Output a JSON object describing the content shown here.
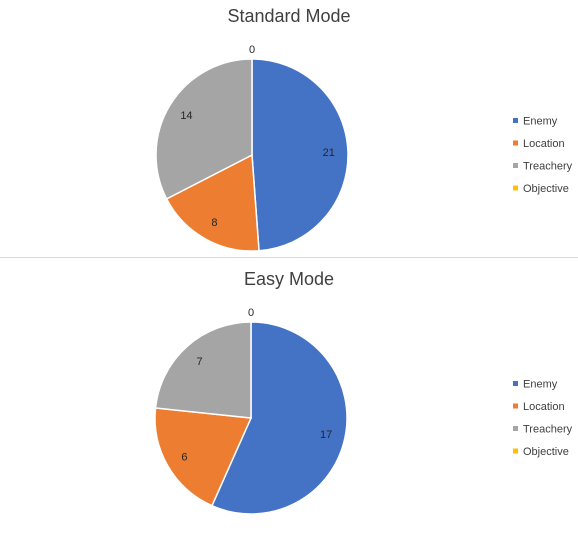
{
  "chart_data": [
    {
      "type": "pie",
      "title": "Standard Mode",
      "categories": [
        "Enemy",
        "Location",
        "Treachery",
        "Objective"
      ],
      "values": [
        21,
        8,
        14,
        0
      ],
      "colors": [
        "#4472C4",
        "#ED7D31",
        "#A5A5A5",
        "#FFC000"
      ],
      "legend_position": "right",
      "data_labels": true
    },
    {
      "type": "pie",
      "title": "Easy Mode",
      "categories": [
        "Enemy",
        "Location",
        "Treachery",
        "Objective"
      ],
      "values": [
        17,
        6,
        7,
        0
      ],
      "colors": [
        "#4472C4",
        "#ED7D31",
        "#A5A5A5",
        "#FFC000"
      ],
      "legend_position": "right",
      "data_labels": true
    }
  ]
}
